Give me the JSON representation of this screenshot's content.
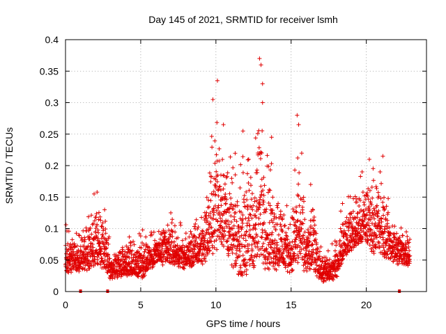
{
  "chart_data": {
    "type": "scatter",
    "title": "Day 145 of 2021, SRMTID for receiver lsmh",
    "xlabel": "GPS time / hours",
    "ylabel": "SRMTID / TECUs",
    "xlim": [
      0,
      24
    ],
    "ylim": [
      0,
      0.4
    ],
    "xticks": [
      0,
      5,
      10,
      15,
      20
    ],
    "yticks": [
      0,
      0.05,
      0.1,
      0.15,
      0.2,
      0.25,
      0.3,
      0.35,
      0.4
    ],
    "xtick_labels": [
      "0",
      "5",
      "10",
      "15",
      "20"
    ],
    "ytick_labels": [
      "0",
      "0.05",
      "0.1",
      "0.15",
      "0.2",
      "0.25",
      "0.3",
      "0.35",
      "0.4"
    ],
    "grid": true,
    "marker": "plus",
    "color": "#e00000",
    "x_range_of_points": [
      0.0,
      22.9
    ],
    "sample_interval_hours": 0.0083,
    "envelope": [
      {
        "x": 0.0,
        "lo": 0.03,
        "hi": 0.105
      },
      {
        "x": 1.0,
        "lo": 0.03,
        "hi": 0.1
      },
      {
        "x": 2.0,
        "lo": 0.035,
        "hi": 0.155
      },
      {
        "x": 2.7,
        "lo": 0.03,
        "hi": 0.13
      },
      {
        "x": 3.0,
        "lo": 0.018,
        "hi": 0.07
      },
      {
        "x": 4.0,
        "lo": 0.025,
        "hi": 0.1
      },
      {
        "x": 5.0,
        "lo": 0.018,
        "hi": 0.105
      },
      {
        "x": 6.0,
        "lo": 0.04,
        "hi": 0.11
      },
      {
        "x": 7.0,
        "lo": 0.04,
        "hi": 0.13
      },
      {
        "x": 8.0,
        "lo": 0.035,
        "hi": 0.1
      },
      {
        "x": 9.0,
        "lo": 0.04,
        "hi": 0.14
      },
      {
        "x": 9.5,
        "lo": 0.05,
        "hi": 0.2
      },
      {
        "x": 10.0,
        "lo": 0.06,
        "hi": 0.34
      },
      {
        "x": 10.5,
        "lo": 0.07,
        "hi": 0.27
      },
      {
        "x": 11.0,
        "lo": 0.04,
        "hi": 0.22
      },
      {
        "x": 11.5,
        "lo": 0.025,
        "hi": 0.2
      },
      {
        "x": 12.0,
        "lo": 0.02,
        "hi": 0.26
      },
      {
        "x": 12.5,
        "lo": 0.03,
        "hi": 0.24
      },
      {
        "x": 13.0,
        "lo": 0.04,
        "hi": 0.375
      },
      {
        "x": 13.5,
        "lo": 0.03,
        "hi": 0.25
      },
      {
        "x": 14.0,
        "lo": 0.03,
        "hi": 0.21
      },
      {
        "x": 14.5,
        "lo": 0.03,
        "hi": 0.17
      },
      {
        "x": 15.0,
        "lo": 0.03,
        "hi": 0.13
      },
      {
        "x": 15.5,
        "lo": 0.03,
        "hi": 0.28
      },
      {
        "x": 16.0,
        "lo": 0.03,
        "hi": 0.12
      },
      {
        "x": 16.5,
        "lo": 0.03,
        "hi": 0.17
      },
      {
        "x": 17.0,
        "lo": 0.015,
        "hi": 0.07
      },
      {
        "x": 17.5,
        "lo": 0.015,
        "hi": 0.07
      },
      {
        "x": 18.0,
        "lo": 0.02,
        "hi": 0.09
      },
      {
        "x": 18.5,
        "lo": 0.05,
        "hi": 0.16
      },
      {
        "x": 19.0,
        "lo": 0.06,
        "hi": 0.17
      },
      {
        "x": 20.0,
        "lo": 0.07,
        "hi": 0.21
      },
      {
        "x": 21.0,
        "lo": 0.05,
        "hi": 0.215
      },
      {
        "x": 21.5,
        "lo": 0.05,
        "hi": 0.15
      },
      {
        "x": 22.0,
        "lo": 0.04,
        "hi": 0.12
      },
      {
        "x": 22.9,
        "lo": 0.04,
        "hi": 0.11
      }
    ],
    "bursts": [
      {
        "x": 1.9,
        "y": 0.155
      },
      {
        "x": 2.6,
        "y": 0.13
      },
      {
        "x": 7.0,
        "y": 0.125
      },
      {
        "x": 9.8,
        "y": 0.305
      },
      {
        "x": 10.1,
        "y": 0.335
      },
      {
        "x": 10.5,
        "y": 0.265
      },
      {
        "x": 11.8,
        "y": 0.255
      },
      {
        "x": 12.9,
        "y": 0.37
      },
      {
        "x": 13.0,
        "y": 0.36
      },
      {
        "x": 13.1,
        "y": 0.33
      },
      {
        "x": 13.1,
        "y": 0.3
      },
      {
        "x": 13.7,
        "y": 0.245
      },
      {
        "x": 15.4,
        "y": 0.28
      },
      {
        "x": 15.5,
        "y": 0.265
      },
      {
        "x": 16.3,
        "y": 0.17
      },
      {
        "x": 20.2,
        "y": 0.21
      },
      {
        "x": 21.1,
        "y": 0.215
      }
    ],
    "x_axis_markers": [
      1.0,
      2.8,
      22.2
    ]
  }
}
